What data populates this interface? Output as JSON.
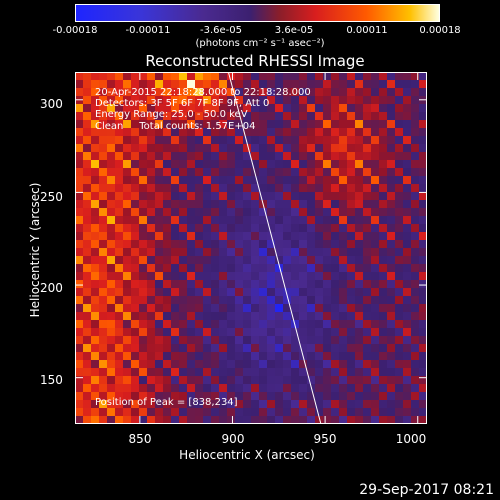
{
  "colorbar": {
    "ticks": [
      "-0.00018",
      "-0.00011",
      "-3.6e-05",
      "3.6e-05",
      "0.00011",
      "0.00018"
    ],
    "units_label": "(photons cm⁻² s⁻¹ asec⁻²)",
    "colors": [
      "#1e25ff",
      "#4a2a90",
      "#3c2070",
      "#d81e1e",
      "#ff5a00",
      "#ffc000",
      "#ffffe0"
    ]
  },
  "chart_data": {
    "type": "heatmap",
    "title": "Reconstructed RHESSI Image",
    "xlabel": "Heliocentric X (arcsec)",
    "ylabel": "Heliocentric Y (arcsec)",
    "xlim": [
      815,
      1005
    ],
    "ylim": [
      125,
      315
    ],
    "x_ticks": [
      "850",
      "900",
      "950",
      "1000"
    ],
    "y_ticks": [
      "150",
      "200",
      "250",
      "300"
    ],
    "x_tick_values": [
      850,
      900,
      950,
      1000
    ],
    "y_tick_values": [
      150,
      200,
      250,
      300
    ],
    "limb_line": [
      [
        897,
        318
      ],
      [
        948,
        124
      ]
    ],
    "peak_position": [
      838,
      234
    ],
    "annotations": {
      "time_range": "20-Apr-2015 22:18:28.000 to 22:18:28.000",
      "detectors": "Detectors: 3F 5F 6F 7F 8F 9F, Att 0",
      "energy": "Energy Range: 25.0 - 50.0 keV",
      "method": "Clean     Total counts: 1.57E+04",
      "peak": "Position of Peak = [838,234]"
    }
  },
  "footer": {
    "date": "29-Sep-2017 08:21"
  }
}
